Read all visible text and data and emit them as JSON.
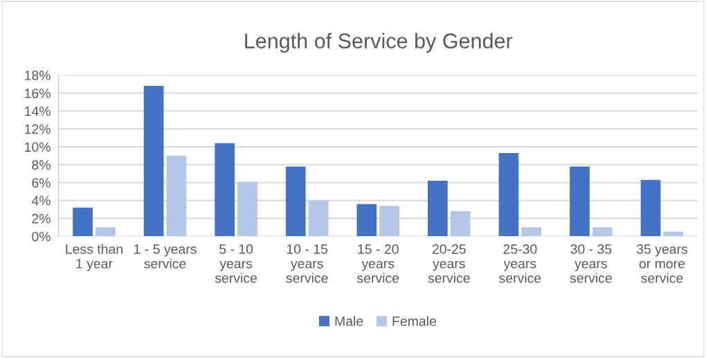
{
  "chart_data": {
    "type": "bar",
    "title": "Length of Service by Gender",
    "categories": [
      "Less than\n1 year",
      "1 - 5 years\nservice",
      "5 - 10\nyears\nservice",
      "10 - 15\nyears\nservice",
      "15 - 20\nyears\nservice",
      "20-25\nyears\nservice",
      "25-30\nyears\nservice",
      "30 - 35\nyears\nservice",
      "35 years\nor more\nservice"
    ],
    "series": [
      {
        "name": "Male",
        "color": "#4472c4",
        "values": [
          3.2,
          16.8,
          10.4,
          7.8,
          3.6,
          6.2,
          9.3,
          7.8,
          6.3
        ]
      },
      {
        "name": "Female",
        "color": "#b4c7e7",
        "values": [
          1.0,
          9.0,
          6.1,
          4.0,
          3.4,
          2.8,
          1.0,
          1.0,
          0.5
        ]
      }
    ],
    "ylim": [
      0,
      18
    ],
    "yticks": [
      {
        "value": 0,
        "label": "0%"
      },
      {
        "value": 2,
        "label": "2%"
      },
      {
        "value": 4,
        "label": "4%"
      },
      {
        "value": 6,
        "label": "6%"
      },
      {
        "value": 8,
        "label": "8%"
      },
      {
        "value": 10,
        "label": "10%"
      },
      {
        "value": 12,
        "label": "12%"
      },
      {
        "value": 14,
        "label": "14%"
      },
      {
        "value": 16,
        "label": "16%"
      },
      {
        "value": 18,
        "label": "18%"
      }
    ],
    "grid": "y",
    "legend": "bottom"
  }
}
